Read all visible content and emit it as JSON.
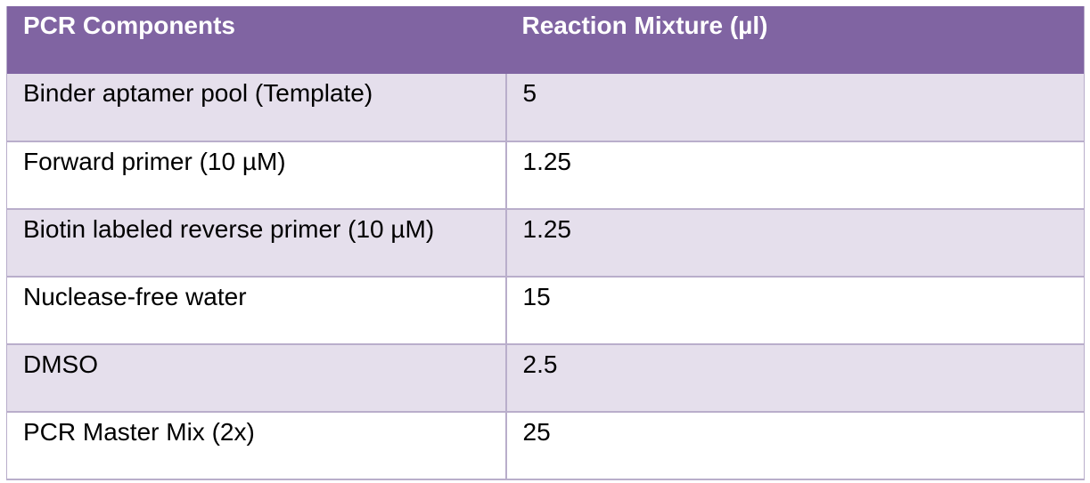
{
  "table": {
    "headers": {
      "col1": "PCR Components",
      "col2": "Reaction Mixture (µl)"
    },
    "rows": [
      {
        "component": "Binder aptamer pool (Template)",
        "volume": "5"
      },
      {
        "component": "Forward primer (10 µM)",
        "volume": "1.25"
      },
      {
        "component": "Biotin labeled reverse primer (10 µM)",
        "volume": "1.25"
      },
      {
        "component": "Nuclease-free water",
        "volume": "15"
      },
      {
        "component": "DMSO",
        "volume": "2.5"
      },
      {
        "component": "PCR Master Mix (2x)",
        "volume": "25"
      }
    ]
  },
  "colors": {
    "header_bg": "#8064a2",
    "row_band": "#e5dfec",
    "row_plain": "#ffffff",
    "border": "#b9aecb"
  }
}
